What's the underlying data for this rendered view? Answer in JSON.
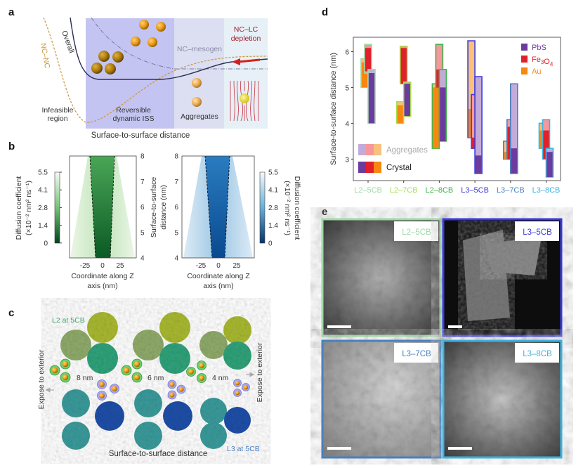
{
  "panel_labels": {
    "a": "a",
    "b": "b",
    "c": "c",
    "d": "d",
    "e": "e"
  },
  "panel_a": {
    "curve_labels": {
      "overall": "Overall",
      "ncnc": "NC–NC"
    },
    "regions": {
      "infeasible_1": "Infeasible",
      "infeasible_2": "region",
      "iss_1": "Reversible",
      "iss_2": "dynamic ISS",
      "mesogen": "NC–mesogen",
      "aggregates": "Aggregates",
      "depletion_1": "NC–LC",
      "depletion_2": "depletion"
    },
    "xlabel": "Surface-to-surface distance",
    "colors": {
      "iss": "#c4c4f2",
      "mesogen": "#dcdff2",
      "depletion": "#e6f0f6",
      "arrow": "#d42020",
      "ncnc": "#c8963c",
      "overall": "#2b2f55"
    }
  },
  "panel_b": {
    "colorbar_ticks": [
      "5.5",
      "4.1",
      "2.8",
      "1.4",
      "0"
    ],
    "colorbar_label_1": "Diffusion coefficient",
    "colorbar_label_2": "(×10⁻² nm² ns⁻¹)",
    "y_ticks": [
      "8",
      "7",
      "6",
      "5",
      "4"
    ],
    "ylabel_1": "Surface-to-surface",
    "ylabel_2": "distance (nm)",
    "x_ticks": [
      "-25",
      "0",
      "25"
    ],
    "xlabel_1": "Coordinate along Z",
    "xlabel_2": "axis (nm)",
    "colormaps": {
      "left": "Greens",
      "right": "Blues"
    }
  },
  "panel_c": {
    "top_label": "L2 at 5CB",
    "bottom_label": "L3 at 5CB",
    "distances": [
      "8 nm",
      "6 nm",
      "4 nm"
    ],
    "left_side": "Expose to exterior",
    "right_side": "Expose to exterior",
    "xlabel": "Surface-to-surface distance"
  },
  "chart_data": {
    "type": "bar",
    "subtype": "floating-range",
    "ylabel": "Surface-to-surface distance (nm)",
    "ylim": [
      2.4,
      6.4
    ],
    "yticks": [
      "3",
      "4",
      "5",
      "6"
    ],
    "categories": [
      "L2–5CB",
      "L2–7CB",
      "L2–8CB",
      "L3–5CB",
      "L3–7CB",
      "L3–8CB"
    ],
    "category_colors": [
      "#9ed9a6",
      "#a8df4c",
      "#3cb44a",
      "#3a3adc",
      "#4a80bf",
      "#3cb2e0"
    ],
    "materials": [
      {
        "name": "PbS",
        "sub": "",
        "crystal_color": "#6b3b9e",
        "aggregate_color": "#c3abd9"
      },
      {
        "name": "Fe",
        "sub": "3",
        "name2": "O",
        "sub2": "4",
        "crystal_color": "#e0202a",
        "aggregate_color": "#f5979c"
      },
      {
        "name": "Au",
        "sub": "",
        "crystal_color": "#f8870f",
        "aggregate_color": "#f8c17c"
      }
    ],
    "legend": {
      "aggregates": "Aggregates",
      "crystal": "Crystal",
      "placement": "top-right / bottom-left"
    },
    "series": [
      {
        "category": "L2–5CB",
        "Au": {
          "aggregates": [
            5.0,
            5.8
          ],
          "crystal": [
            5.0,
            5.7
          ]
        },
        "Fe3O4": {
          "aggregates": [
            5.4,
            6.2
          ],
          "crystal": [
            5.45,
            6.1
          ]
        },
        "PbS": {
          "aggregates": [
            4.0,
            5.5
          ],
          "crystal": [
            4.0,
            5.4
          ]
        }
      },
      {
        "category": "L2–7CB",
        "Au": {
          "aggregates": [
            4.0,
            4.6
          ],
          "crystal": [
            4.0,
            4.5
          ]
        },
        "Fe3O4": {
          "aggregates": [
            5.1,
            6.15
          ],
          "crystal": [
            5.1,
            6.1
          ]
        },
        "PbS": {
          "aggregates": [
            4.2,
            5.15
          ],
          "crystal": [
            4.2,
            5.1
          ]
        }
      },
      {
        "category": "L2–8CB",
        "Au": {
          "aggregates": [
            3.3,
            5.1
          ],
          "crystal": [
            3.3,
            5.0
          ]
        },
        "Fe3O4": {
          "aggregates": [
            5.0,
            6.2
          ],
          "crystal": [
            5.0,
            5.5
          ]
        },
        "PbS": {
          "aggregates": [
            3.5,
            5.5
          ],
          "crystal": [
            3.5,
            5.0
          ]
        }
      },
      {
        "category": "L3–5CB",
        "Au": {
          "aggregates": [
            3.6,
            6.3
          ],
          "crystal": [
            3.6,
            4.4
          ]
        },
        "Fe3O4": {
          "aggregates": [
            3.3,
            4.8
          ],
          "crystal": [
            3.3,
            3.6
          ]
        },
        "PbS": {
          "aggregates": [
            2.6,
            5.3
          ],
          "crystal": [
            2.6,
            3.1
          ]
        }
      },
      {
        "category": "L3–7CB",
        "Au": {
          "aggregates": [
            3.0,
            3.5
          ],
          "crystal": [
            3.0,
            3.2
          ]
        },
        "Fe3O4": {
          "aggregates": [
            3.0,
            4.1
          ],
          "crystal": [
            3.0,
            3.9
          ]
        },
        "PbS": {
          "aggregates": [
            2.6,
            5.1
          ],
          "crystal": [
            2.6,
            3.3
          ]
        }
      },
      {
        "category": "L3–8CB",
        "Au": {
          "aggregates": [
            3.3,
            4.0
          ],
          "crystal": [
            3.3,
            3.8
          ]
        },
        "Fe3O4": {
          "aggregates": [
            3.0,
            4.1
          ],
          "crystal": [
            3.0,
            3.8
          ]
        },
        "PbS": {
          "aggregates": [
            2.5,
            3.3
          ],
          "crystal": [
            2.5,
            3.2
          ]
        }
      }
    ]
  },
  "panel_e": {
    "tiles": [
      {
        "label": "L2–5CB",
        "color": "#9ed9a6"
      },
      {
        "label": "L3–5CB",
        "color": "#3a3adc"
      },
      {
        "label": "L3–7CB",
        "color": "#4a80bf"
      },
      {
        "label": "L3–8CB",
        "color": "#3cb2e0"
      }
    ]
  }
}
